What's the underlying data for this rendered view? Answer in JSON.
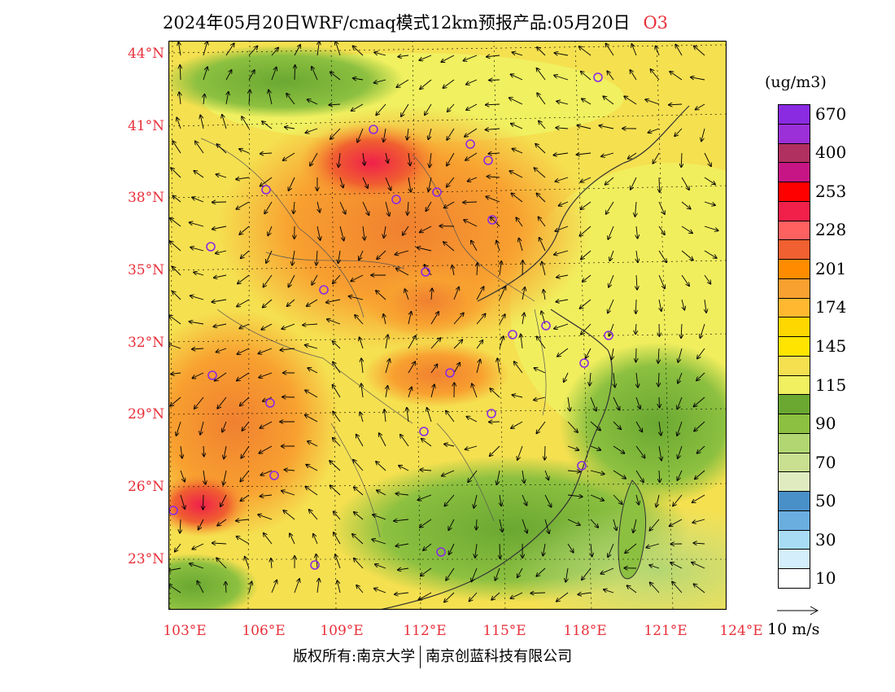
{
  "title": {
    "main": "2024年05月20日WRF/cmaq模式12km预报产品:05月20日",
    "species": "O3"
  },
  "axes": {
    "lat_labels": [
      "44°N",
      "41°N",
      "38°N",
      "35°N",
      "32°N",
      "29°N",
      "26°N",
      "23°N"
    ],
    "lon_labels": [
      "103°E",
      "106°E",
      "109°E",
      "112°E",
      "115°E",
      "118°E",
      "121°E",
      "124°E"
    ]
  },
  "colorbar": {
    "unit": "(ug/m3)",
    "levels": [
      {
        "label": "670",
        "color": "#8a2be2"
      },
      {
        "label": "",
        "color": "#9b30d9"
      },
      {
        "label": "400",
        "color": "#b03060"
      },
      {
        "label": "",
        "color": "#c71585"
      },
      {
        "label": "253",
        "color": "#ff0000"
      },
      {
        "label": "",
        "color": "#f0204a"
      },
      {
        "label": "228",
        "color": "#ff6060"
      },
      {
        "label": "",
        "color": "#f06030"
      },
      {
        "label": "201",
        "color": "#ff8c00"
      },
      {
        "label": "",
        "color": "#f8a030"
      },
      {
        "label": "174",
        "color": "#ffb830"
      },
      {
        "label": "",
        "color": "#ffd700"
      },
      {
        "label": "145",
        "color": "#ffe400"
      },
      {
        "label": "",
        "color": "#f5e050"
      },
      {
        "label": "115",
        "color": "#f0f060"
      },
      {
        "label": "",
        "color": "#6aa832"
      },
      {
        "label": "90",
        "color": "#8cc040"
      },
      {
        "label": "",
        "color": "#b2d672"
      },
      {
        "label": "70",
        "color": "#c8e090"
      },
      {
        "label": "",
        "color": "#e0ecc0"
      },
      {
        "label": "50",
        "color": "#4a90c8"
      },
      {
        "label": "",
        "color": "#6aaee0"
      },
      {
        "label": "30",
        "color": "#a8dcf5"
      },
      {
        "label": "",
        "color": "#d4eefb"
      },
      {
        "label": "10",
        "color": "#ffffff"
      }
    ]
  },
  "wind_key": {
    "label": "10 m/s"
  },
  "footer": {
    "left": "版权所有:南京大学",
    "right": "南京创蓝科技有限公司"
  }
}
